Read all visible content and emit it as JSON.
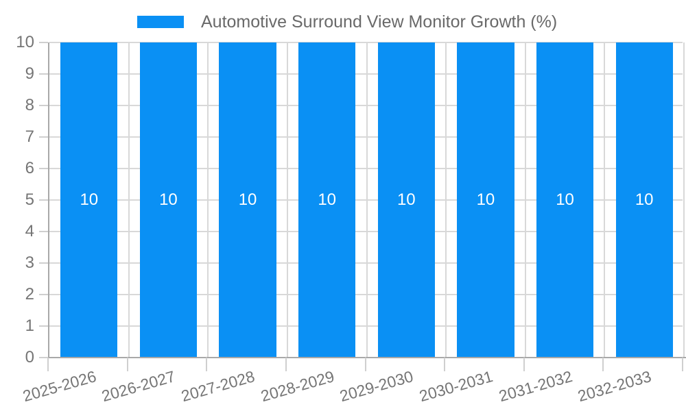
{
  "chart_data": {
    "type": "bar",
    "title": "Automotive Surround View Monitor Growth (%)",
    "legend": {
      "position": "top",
      "label": "Automotive Surround View Monitor Growth (%)"
    },
    "categories": [
      "2025-2026",
      "2026-2027",
      "2027-2028",
      "2028-2029",
      "2029-2030",
      "2030-2031",
      "2031-2032",
      "2032-2033"
    ],
    "series": [
      {
        "name": "Automotive Surround View Monitor Growth (%)",
        "values": [
          10,
          10,
          10,
          10,
          10,
          10,
          10,
          10
        ],
        "color": "#0a90f4"
      }
    ],
    "bar_value_labels": [
      "10",
      "10",
      "10",
      "10",
      "10",
      "10",
      "10",
      "10"
    ],
    "xlabel": "",
    "ylabel": "",
    "ylim": [
      0,
      10
    ],
    "yticks": [
      0,
      1,
      2,
      3,
      4,
      5,
      6,
      7,
      8,
      9,
      10
    ],
    "grid": true,
    "x_tick_rotation_deg": -16,
    "value_labels_position": "middle"
  },
  "colors": {
    "bar": "#0a90f4",
    "grid": "#d8d8d8",
    "axis": "#a8a8a8",
    "tick": "#cfcfcf",
    "tick_label": "#757575",
    "legend_label": "#696969",
    "value_label": "#ffffff",
    "background": "#ffffff"
  }
}
